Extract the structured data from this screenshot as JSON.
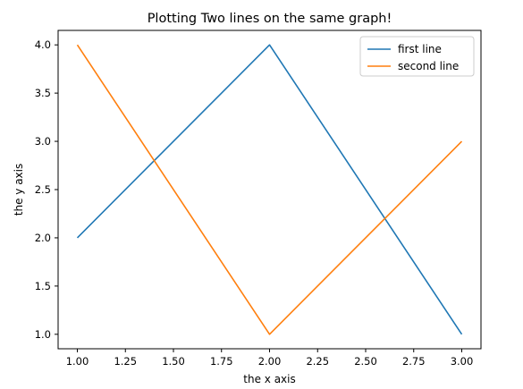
{
  "chart_data": {
    "type": "line",
    "title": "Plotting Two lines on the same graph!",
    "xlabel": "the x axis",
    "ylabel": "the y axis",
    "xlim": [
      0.9,
      3.1
    ],
    "ylim": [
      0.85,
      4.15
    ],
    "xticks": [
      1.0,
      1.25,
      1.5,
      1.75,
      2.0,
      2.25,
      2.5,
      2.75,
      3.0
    ],
    "xtick_labels": [
      "1.00",
      "1.25",
      "1.50",
      "1.75",
      "2.00",
      "2.25",
      "2.50",
      "2.75",
      "3.00"
    ],
    "yticks": [
      1.0,
      1.5,
      2.0,
      2.5,
      3.0,
      3.5,
      4.0
    ],
    "ytick_labels": [
      "1.0",
      "1.5",
      "2.0",
      "2.5",
      "3.0",
      "3.5",
      "4.0"
    ],
    "grid": false,
    "legend_position": "top-right",
    "series": [
      {
        "name": "first line",
        "color": "#1f77b4",
        "x": [
          1,
          2,
          3
        ],
        "y": [
          2,
          4,
          1
        ]
      },
      {
        "name": "second line",
        "color": "#ff7f0e",
        "x": [
          1,
          2,
          3
        ],
        "y": [
          4,
          1,
          3
        ]
      }
    ]
  }
}
